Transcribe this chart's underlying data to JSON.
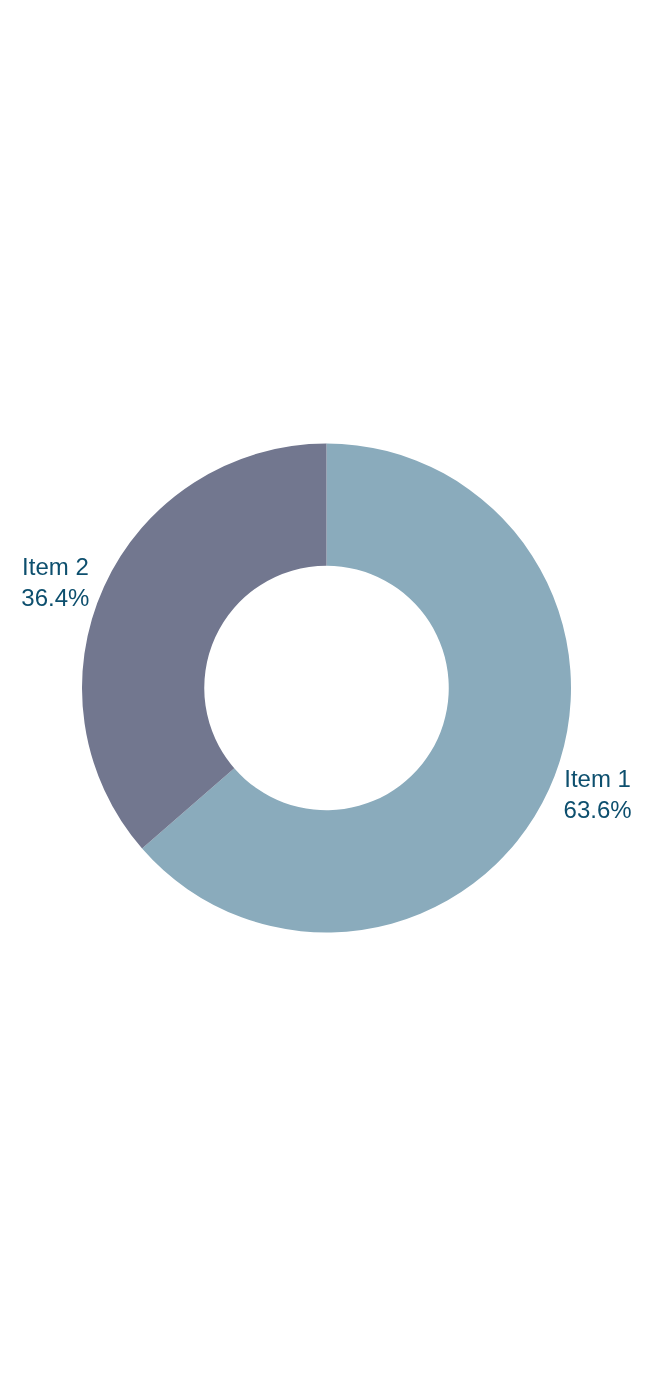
{
  "chart_data": {
    "type": "donut",
    "categories": [
      "Item 1",
      "Item 2"
    ],
    "values": [
      63.6,
      36.4
    ],
    "value_labels": [
      "63.6%",
      "36.4%"
    ],
    "colors": [
      "#8aabbc",
      "#72778f"
    ],
    "legend": false
  }
}
